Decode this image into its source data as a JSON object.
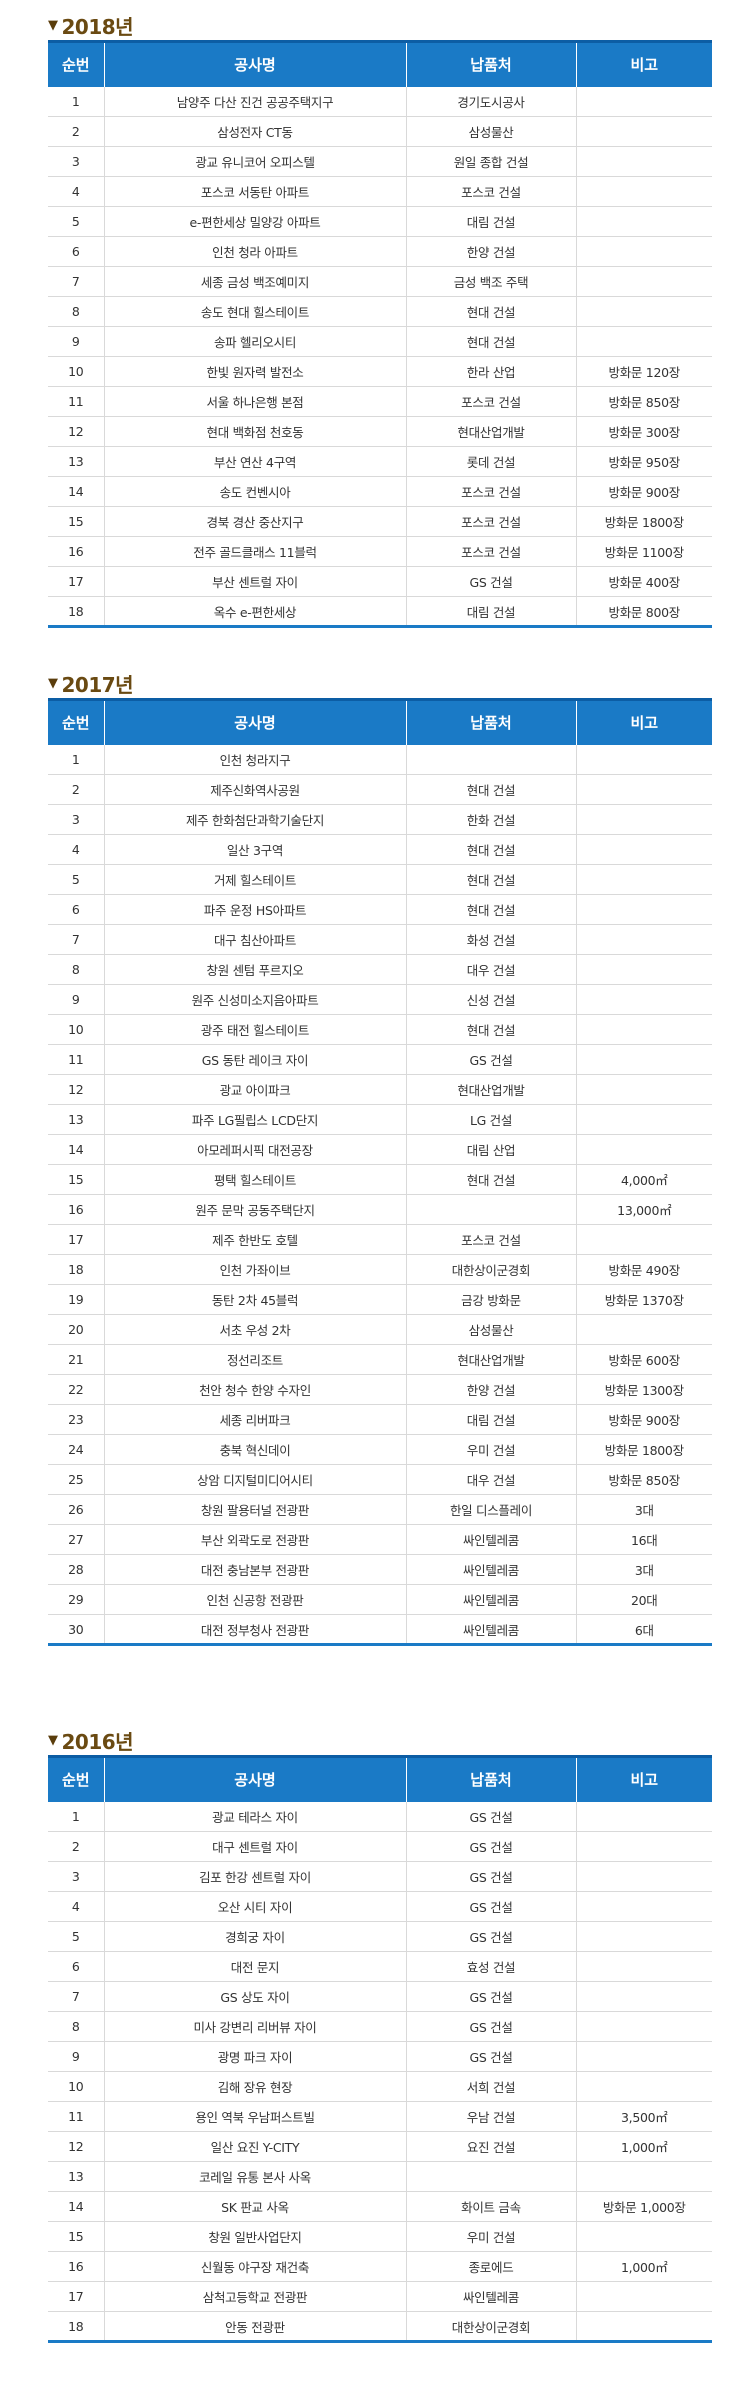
{
  "sections": [
    {
      "year": "2018년",
      "headers": [
        "순번",
        "공사명",
        "납품처",
        "비고"
      ],
      "rows": [
        [
          "1",
          "남양주 다산 진건 공공주택지구",
          "경기도시공사",
          ""
        ],
        [
          "2",
          "삼성전자 CT동",
          "삼성물산",
          ""
        ],
        [
          "3",
          "광교 유니코어 오피스텔",
          "원일 종합 건설",
          ""
        ],
        [
          "4",
          "포스코 서동탄 아파트",
          "포스코 건설",
          ""
        ],
        [
          "5",
          "e-편한세상 밀양강 아파트",
          "대림 건설",
          ""
        ],
        [
          "6",
          "인천 청라 아파트",
          "한양 건설",
          ""
        ],
        [
          "7",
          "세종 금성 백조예미지",
          "금성 백조 주택",
          ""
        ],
        [
          "8",
          "송도 현대 힐스테이트",
          "현대 건설",
          ""
        ],
        [
          "9",
          "송파 헬리오시티",
          "현대 건설",
          ""
        ],
        [
          "10",
          "한빛 원자력 발전소",
          "한라 산업",
          "방화문 120장"
        ],
        [
          "11",
          "서울 하나은행 본점",
          "포스코 건설",
          "방화문 850장"
        ],
        [
          "12",
          "현대 백화점 천호동",
          "현대산업개발",
          "방화문 300장"
        ],
        [
          "13",
          "부산 연산 4구역",
          "롯데 건설",
          "방화문 950장"
        ],
        [
          "14",
          "송도 컨벤시아",
          "포스코 건설",
          "방화문 900장"
        ],
        [
          "15",
          "경북 경산 중산지구",
          "포스코 건설",
          "방화문 1800장"
        ],
        [
          "16",
          "전주 골드클래스 11블럭",
          "포스코 건설",
          "방화문 1100장"
        ],
        [
          "17",
          "부산 센트럴 자이",
          "GS 건설",
          "방화문 400장"
        ],
        [
          "18",
          "옥수 e-편한세상",
          "대림 건설",
          "방화문 800장"
        ]
      ]
    },
    {
      "year": "2017년",
      "headers": [
        "순번",
        "공사명",
        "납품처",
        "비고"
      ],
      "rows": [
        [
          "1",
          "인천 청라지구",
          "",
          ""
        ],
        [
          "2",
          "제주신화역사공원",
          "현대 건설",
          ""
        ],
        [
          "3",
          "제주 한화첨단과학기술단지",
          "한화 건설",
          ""
        ],
        [
          "4",
          "일산 3구역",
          "현대 건설",
          ""
        ],
        [
          "5",
          "거제 힐스테이트",
          "현대 건설",
          ""
        ],
        [
          "6",
          "파주 운정 HS아파트",
          "현대 건설",
          ""
        ],
        [
          "7",
          "대구 침산아파트",
          "화성 건설",
          ""
        ],
        [
          "8",
          "창원 센텀 푸르지오",
          "대우 건설",
          ""
        ],
        [
          "9",
          "원주 신성미소지음아파트",
          "신성 건설",
          ""
        ],
        [
          "10",
          "광주 태전 힐스테이트",
          "현대 건설",
          ""
        ],
        [
          "11",
          "GS 동탄 레이크 자이",
          "GS 건설",
          ""
        ],
        [
          "12",
          "광교 아이파크",
          "현대산업개발",
          ""
        ],
        [
          "13",
          "파주 LG필립스 LCD단지",
          "LG 건설",
          ""
        ],
        [
          "14",
          "아모레퍼시픽 대전공장",
          "대림 산업",
          ""
        ],
        [
          "15",
          "평택 힐스테이트",
          "현대 건설",
          "4,000㎡"
        ],
        [
          "16",
          "원주 문막 공동주택단지",
          "",
          "13,000㎡"
        ],
        [
          "17",
          "제주 한반도 호텔",
          "포스코 건설",
          ""
        ],
        [
          "18",
          "인천 가좌이브",
          "대한상이군경회",
          "방화문 490장"
        ],
        [
          "19",
          "동탄 2차 45블럭",
          "금강 방화문",
          "방화문 1370장"
        ],
        [
          "20",
          "서초 우성 2차",
          "삼성물산",
          ""
        ],
        [
          "21",
          "정선리조트",
          "현대산업개발",
          "방화문 600장"
        ],
        [
          "22",
          "천안 청수 한양 수자인",
          "한양 건설",
          "방화문 1300장"
        ],
        [
          "23",
          "세종 리버파크",
          "대림 건설",
          "방화문 900장"
        ],
        [
          "24",
          "충북 혁신데이",
          "우미 건설",
          "방화문 1800장"
        ],
        [
          "25",
          "상암 디지털미디어시티",
          "대우 건설",
          "방화문 850장"
        ],
        [
          "26",
          "창원 팔용터널 전광판",
          "한일 디스플레이",
          "3대"
        ],
        [
          "27",
          "부산 외곽도로 전광판",
          "싸인텔레콤",
          "16대"
        ],
        [
          "28",
          "대전 충남본부 전광판",
          "싸인텔레콤",
          "3대"
        ],
        [
          "29",
          "인천 신공항 전광판",
          "싸인텔레콤",
          "20대"
        ],
        [
          "30",
          "대전 정부청사 전광판",
          "싸인텔레콤",
          "6대"
        ]
      ]
    },
    {
      "year": "2016년",
      "headers": [
        "순번",
        "공사명",
        "납품처",
        "비고"
      ],
      "rows": [
        [
          "1",
          "광교 테라스 자이",
          "GS 건설",
          ""
        ],
        [
          "2",
          "대구 센트럴 자이",
          "GS 건설",
          ""
        ],
        [
          "3",
          "김포 한강 센트럴 자이",
          "GS 건설",
          ""
        ],
        [
          "4",
          "오산 시티 자이",
          "GS 건설",
          ""
        ],
        [
          "5",
          "경희궁 자이",
          "GS 건설",
          ""
        ],
        [
          "6",
          "대전 문지",
          "효성 건설",
          ""
        ],
        [
          "7",
          "GS 상도 자이",
          "GS 건설",
          ""
        ],
        [
          "8",
          "미사 강변리 리버뷰 자이",
          "GS 건설",
          ""
        ],
        [
          "9",
          "광명 파크 자이",
          "GS 건설",
          ""
        ],
        [
          "10",
          "김해 장유 현장",
          "서희 건설",
          ""
        ],
        [
          "11",
          "용인 역북 우남퍼스트빌",
          "우남 건설",
          "3,500㎡"
        ],
        [
          "12",
          "일산 요진 Y-CITY",
          "요진 건설",
          "1,000㎡"
        ],
        [
          "13",
          "코레일 유통 본사 사옥",
          "",
          ""
        ],
        [
          "14",
          "SK 판교 사옥",
          "화이트 금속",
          "방화문 1,000장"
        ],
        [
          "15",
          "창원 일반사업단지",
          "우미 건설",
          ""
        ],
        [
          "16",
          "신월동 야구장 재건축",
          "종로에드",
          "1,000㎡"
        ],
        [
          "17",
          "삼척고등학교 전광판",
          "싸인텔레콤",
          ""
        ],
        [
          "18",
          "안동 전광판",
          "대한상이군경회",
          ""
        ]
      ]
    }
  ]
}
